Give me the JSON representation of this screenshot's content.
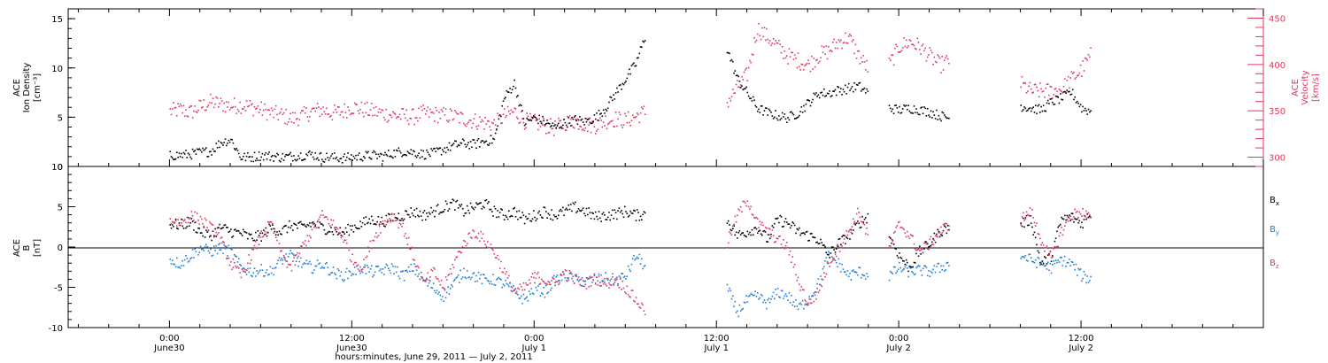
{
  "chart_data": [
    {
      "type": "scatter",
      "panel": "top",
      "ylabel": [
        "ACE",
        "Ion Density",
        "[cm⁻³]"
      ],
      "ylabel_right": [
        "ACE",
        "Velocity",
        "[km/s]"
      ],
      "ylim": [
        0,
        16
      ],
      "yticks": [
        "0",
        "5",
        "10",
        "15"
      ],
      "ylim_right": [
        290,
        460
      ],
      "yticks_right": [
        "300",
        "350",
        "400",
        "450"
      ],
      "series": [
        {
          "axis": "left",
          "color": "#000000",
          "x": [
            0,
            2,
            4,
            6,
            8,
            10,
            12,
            14,
            16,
            18,
            20,
            22,
            24,
            26,
            28,
            30,
            32,
            34,
            36,
            38,
            40,
            42,
            44,
            46,
            48,
            50,
            52,
            54,
            56,
            58,
            60,
            62,
            64,
            66,
            68,
            70,
            72,
            74,
            76,
            78,
            80,
            82,
            84,
            86,
            88,
            90,
            92,
            94,
            96,
            98,
            100,
            102,
            104,
            106,
            108,
            110,
            112,
            114,
            116,
            118,
            120,
            122,
            124,
            126,
            128,
            130,
            132,
            134,
            136,
            138,
            140,
            142,
            144,
            146,
            148,
            150,
            152,
            154,
            156,
            158,
            160,
            162,
            164,
            166,
            168,
            170,
            172,
            174,
            176,
            178,
            180,
            182
          ],
          "y": [
            1.2,
            1.2,
            1.3,
            1.5,
            1.6,
            2.5,
            2.8,
            1.0,
            1.0,
            1.2,
            1.1,
            1.0,
            1.1,
            1.2,
            1.3,
            1.0,
            1.0,
            0.9,
            1.0,
            1.1,
            1.2,
            1.1,
            1.4,
            1.6,
            1.5,
            1.3,
            1.4,
            1.8,
            2.2,
            2.4,
            2.3,
            2.6,
            2.8,
            7.0,
            8.5,
            4.5,
            5.0,
            4.6,
            4.0,
            4.5,
            4.8,
            4.6,
            5.0,
            6.0,
            7.5,
            9.0,
            10.5,
            13.5,
            null,
            null,
            null,
            null,
            null,
            null,
            null,
            12.0,
            9.0,
            7.5,
            6.0,
            5.5,
            5.2,
            5.0,
            5.5,
            6.5,
            7.5,
            7.5,
            7.8,
            8.0,
            8.2,
            7.5,
            null,
            6.0,
            5.8,
            6.0,
            5.8,
            5.6,
            5.2,
            5.0,
            null,
            4.8,
            null,
            null,
            null,
            null,
            6.2,
            6.0,
            5.8,
            6.6,
            7.0,
            7.6,
            6.0,
            5.6
          ]
        },
        {
          "axis": "right",
          "color": "#e0385f",
          "x": [
            0,
            2,
            4,
            6,
            8,
            10,
            12,
            14,
            16,
            18,
            20,
            22,
            24,
            26,
            28,
            30,
            32,
            34,
            36,
            38,
            40,
            42,
            44,
            46,
            48,
            50,
            52,
            54,
            56,
            58,
            60,
            62,
            64,
            66,
            68,
            70,
            72,
            74,
            76,
            78,
            80,
            82,
            84,
            86,
            88,
            90,
            92,
            94,
            96,
            98,
            100,
            102,
            104,
            106,
            108,
            110,
            112,
            114,
            116,
            118,
            120,
            122,
            124,
            126,
            128,
            130,
            132,
            134,
            136,
            138,
            140,
            142,
            144,
            146,
            148,
            150,
            152,
            154,
            156,
            158,
            160,
            162,
            164,
            166,
            168,
            170,
            172,
            174,
            176,
            178,
            180,
            182
          ],
          "y": [
            350,
            352,
            349,
            355,
            360,
            358,
            356,
            357,
            355,
            352,
            348,
            346,
            342,
            345,
            350,
            352,
            348,
            350,
            355,
            352,
            350,
            348,
            346,
            345,
            344,
            348,
            347,
            346,
            345,
            342,
            340,
            338,
            336,
            345,
            350,
            340,
            338,
            335,
            332,
            338,
            340,
            336,
            335,
            340,
            342,
            340,
            345,
            350,
            null,
            null,
            null,
            null,
            null,
            null,
            null,
            360,
            375,
            390,
            440,
            430,
            420,
            410,
            405,
            400,
            410,
            415,
            425,
            430,
            410,
            395,
            null,
            400,
            420,
            425,
            420,
            410,
            400,
            405,
            null,
            403,
            null,
            null,
            null,
            null,
            380,
            372,
            372,
            372,
            374,
            385,
            395,
            412
          ]
        }
      ]
    },
    {
      "type": "scatter",
      "panel": "bottom",
      "ylabel": [
        "ACE",
        "B",
        "[nT]"
      ],
      "ylim": [
        -10,
        10
      ],
      "yticks": [
        "-10",
        "-5",
        "0",
        "5",
        "10"
      ],
      "legend": [
        "Bx",
        "By",
        "Bz"
      ],
      "series": [
        {
          "name": "Bx",
          "color": "#000000",
          "x": [
            0,
            2,
            4,
            6,
            8,
            10,
            12,
            14,
            16,
            18,
            20,
            22,
            24,
            26,
            28,
            30,
            32,
            34,
            36,
            38,
            40,
            42,
            44,
            46,
            48,
            50,
            52,
            54,
            56,
            58,
            60,
            62,
            64,
            66,
            68,
            70,
            72,
            74,
            76,
            78,
            80,
            82,
            84,
            86,
            88,
            90,
            92,
            94,
            96,
            98,
            100,
            102,
            104,
            106,
            108,
            110,
            112,
            114,
            116,
            118,
            120,
            122,
            124,
            126,
            128,
            130,
            132,
            134,
            136,
            138,
            140,
            142,
            144,
            146,
            148,
            150,
            152,
            154,
            156,
            158,
            160,
            162,
            164,
            166,
            168,
            170,
            172,
            174,
            176,
            178,
            180,
            182
          ],
          "y": [
            3.0,
            2.8,
            3.2,
            2.0,
            1.5,
            2.5,
            2.0,
            1.8,
            1.2,
            1.5,
            2.5,
            2.0,
            2.8,
            2.5,
            3.0,
            2.5,
            2.2,
            1.8,
            2.5,
            3.0,
            3.5,
            3.2,
            3.8,
            4.0,
            4.5,
            4.0,
            4.5,
            5.0,
            5.5,
            4.5,
            5.0,
            5.5,
            4.5,
            4.0,
            4.5,
            3.5,
            4.0,
            4.5,
            4.0,
            4.5,
            5.0,
            4.5,
            3.8,
            4.0,
            4.2,
            4.5,
            4.0,
            4.2,
            null,
            null,
            null,
            null,
            null,
            null,
            null,
            3.5,
            1.5,
            2.0,
            2.5,
            1.0,
            3.5,
            3.0,
            2.0,
            1.5,
            1.0,
            -1.0,
            0.5,
            1.5,
            3.0,
            4.0,
            null,
            1.5,
            -1.0,
            -2.5,
            -0.5,
            0.5,
            2.0,
            2.5,
            null,
            2.0,
            null,
            null,
            null,
            null,
            3.0,
            3.5,
            -2.0,
            -1.0,
            3.5,
            3.8,
            3.0,
            4.5
          ]
        },
        {
          "name": "By",
          "color": "#1e7fd8",
          "x": [
            0,
            2,
            4,
            6,
            8,
            10,
            12,
            14,
            16,
            18,
            20,
            22,
            24,
            26,
            28,
            30,
            32,
            34,
            36,
            38,
            40,
            42,
            44,
            46,
            48,
            50,
            52,
            54,
            56,
            58,
            60,
            62,
            64,
            66,
            68,
            70,
            72,
            74,
            76,
            78,
            80,
            82,
            84,
            86,
            88,
            90,
            92,
            94,
            96,
            98,
            100,
            102,
            104,
            106,
            108,
            110,
            112,
            114,
            116,
            118,
            120,
            122,
            124,
            126,
            128,
            130,
            132,
            134,
            136,
            138,
            140,
            142,
            144,
            146,
            148,
            150,
            152,
            154,
            156,
            158,
            160,
            162,
            164,
            166,
            168,
            170,
            172,
            174,
            176,
            178,
            180,
            182
          ],
          "y": [
            -1.5,
            -2.0,
            -1.0,
            0.0,
            -0.5,
            0.0,
            -0.5,
            -2.5,
            -3.0,
            -2.8,
            -3.0,
            -1.5,
            -1.0,
            -2.0,
            -2.5,
            -2.0,
            -3.0,
            -3.5,
            -3.0,
            -2.5,
            -3.0,
            -2.8,
            -2.5,
            -3.5,
            -2.5,
            -4.0,
            -5.0,
            -6.0,
            -4.5,
            -3.0,
            -3.5,
            -4.0,
            -4.0,
            -4.5,
            -5.5,
            -6.5,
            -5.0,
            -5.5,
            -4.0,
            -3.5,
            -4.0,
            -4.2,
            -4.0,
            -3.8,
            -4.0,
            -3.5,
            -1.0,
            -2.5,
            null,
            null,
            null,
            null,
            null,
            null,
            null,
            -5.0,
            -8.0,
            -6.5,
            -6.0,
            -7.0,
            -5.5,
            -6.0,
            -7.5,
            -6.5,
            -4.5,
            -1.0,
            -2.0,
            -3.5,
            -3.0,
            -3.5,
            null,
            -3.5,
            -2.5,
            -3.0,
            -2.8,
            -3.0,
            -2.5,
            -2.0,
            null,
            -1.5,
            null,
            null,
            null,
            null,
            -1.0,
            -1.5,
            -2.0,
            -2.5,
            -1.5,
            -2.0,
            -3.5,
            -4.0
          ]
        },
        {
          "name": "Bz",
          "color": "#e0385f",
          "x": [
            0,
            2,
            4,
            6,
            8,
            10,
            12,
            14,
            16,
            18,
            20,
            22,
            24,
            26,
            28,
            30,
            32,
            34,
            36,
            38,
            40,
            42,
            44,
            46,
            48,
            50,
            52,
            54,
            56,
            58,
            60,
            62,
            64,
            66,
            68,
            70,
            72,
            74,
            76,
            78,
            80,
            82,
            84,
            86,
            88,
            90,
            92,
            94,
            96,
            98,
            100,
            102,
            104,
            106,
            108,
            110,
            112,
            114,
            116,
            118,
            120,
            122,
            124,
            126,
            128,
            130,
            132,
            134,
            136,
            138,
            140,
            142,
            144,
            146,
            148,
            150,
            152,
            154,
            156,
            158,
            160,
            162,
            164,
            166,
            168,
            170,
            172,
            174,
            176,
            178,
            180,
            182
          ],
          "y": [
            3.5,
            3.0,
            4.0,
            3.5,
            2.5,
            1.0,
            -2.0,
            -3.5,
            -1.0,
            1.5,
            3.0,
            -1.0,
            -2.5,
            0.0,
            2.0,
            4.0,
            3.0,
            1.5,
            -1.5,
            -2.5,
            1.0,
            3.0,
            4.0,
            2.5,
            -1.0,
            -4.5,
            -3.0,
            -5.0,
            -2.0,
            0.5,
            2.0,
            1.0,
            -0.5,
            -3.0,
            -5.5,
            -5.0,
            -3.5,
            -4.0,
            -4.5,
            -3.0,
            -4.0,
            -4.5,
            -3.8,
            -4.5,
            -4.0,
            -5.0,
            -6.5,
            -8.0,
            null,
            null,
            null,
            null,
            null,
            null,
            null,
            0.5,
            4.0,
            6.0,
            3.0,
            2.0,
            1.0,
            0.0,
            -4.0,
            -7.0,
            -5.5,
            -2.0,
            0.0,
            2.0,
            4.5,
            1.0,
            null,
            0.0,
            3.0,
            1.5,
            -0.5,
            0.5,
            2.0,
            3.0,
            null,
            3.5,
            null,
            null,
            null,
            null,
            3.5,
            4.5,
            1.0,
            -1.5,
            2.0,
            4.0,
            4.5,
            3.5
          ]
        }
      ]
    }
  ],
  "xaxis": {
    "xlim": [
      -20,
      216
    ],
    "ticks": [
      {
        "x": 0,
        "time": "0:00",
        "date": "June30"
      },
      {
        "x": 36,
        "time": "12:00",
        "date": "June30"
      },
      {
        "x": 72,
        "time": "0:00",
        "date": "July 1"
      },
      {
        "x": 108,
        "time": "12:00",
        "date": "July 1"
      },
      {
        "x": 144,
        "time": "0:00",
        "date": "July 2"
      },
      {
        "x": 180,
        "time": "12:00",
        "date": "July 2"
      }
    ],
    "label": "hours:minutes, June 29, 2011 — July  2, 2011"
  },
  "legend_labels": {
    "bx": "B",
    "bx_sub": "x",
    "by": "B",
    "by_sub": "y",
    "bz": "B",
    "bz_sub": "z"
  },
  "colors": {
    "density": "#000000",
    "velocity": "#e0385f",
    "bx": "#000000",
    "by": "#1e7fd8",
    "bz": "#e0385f"
  }
}
